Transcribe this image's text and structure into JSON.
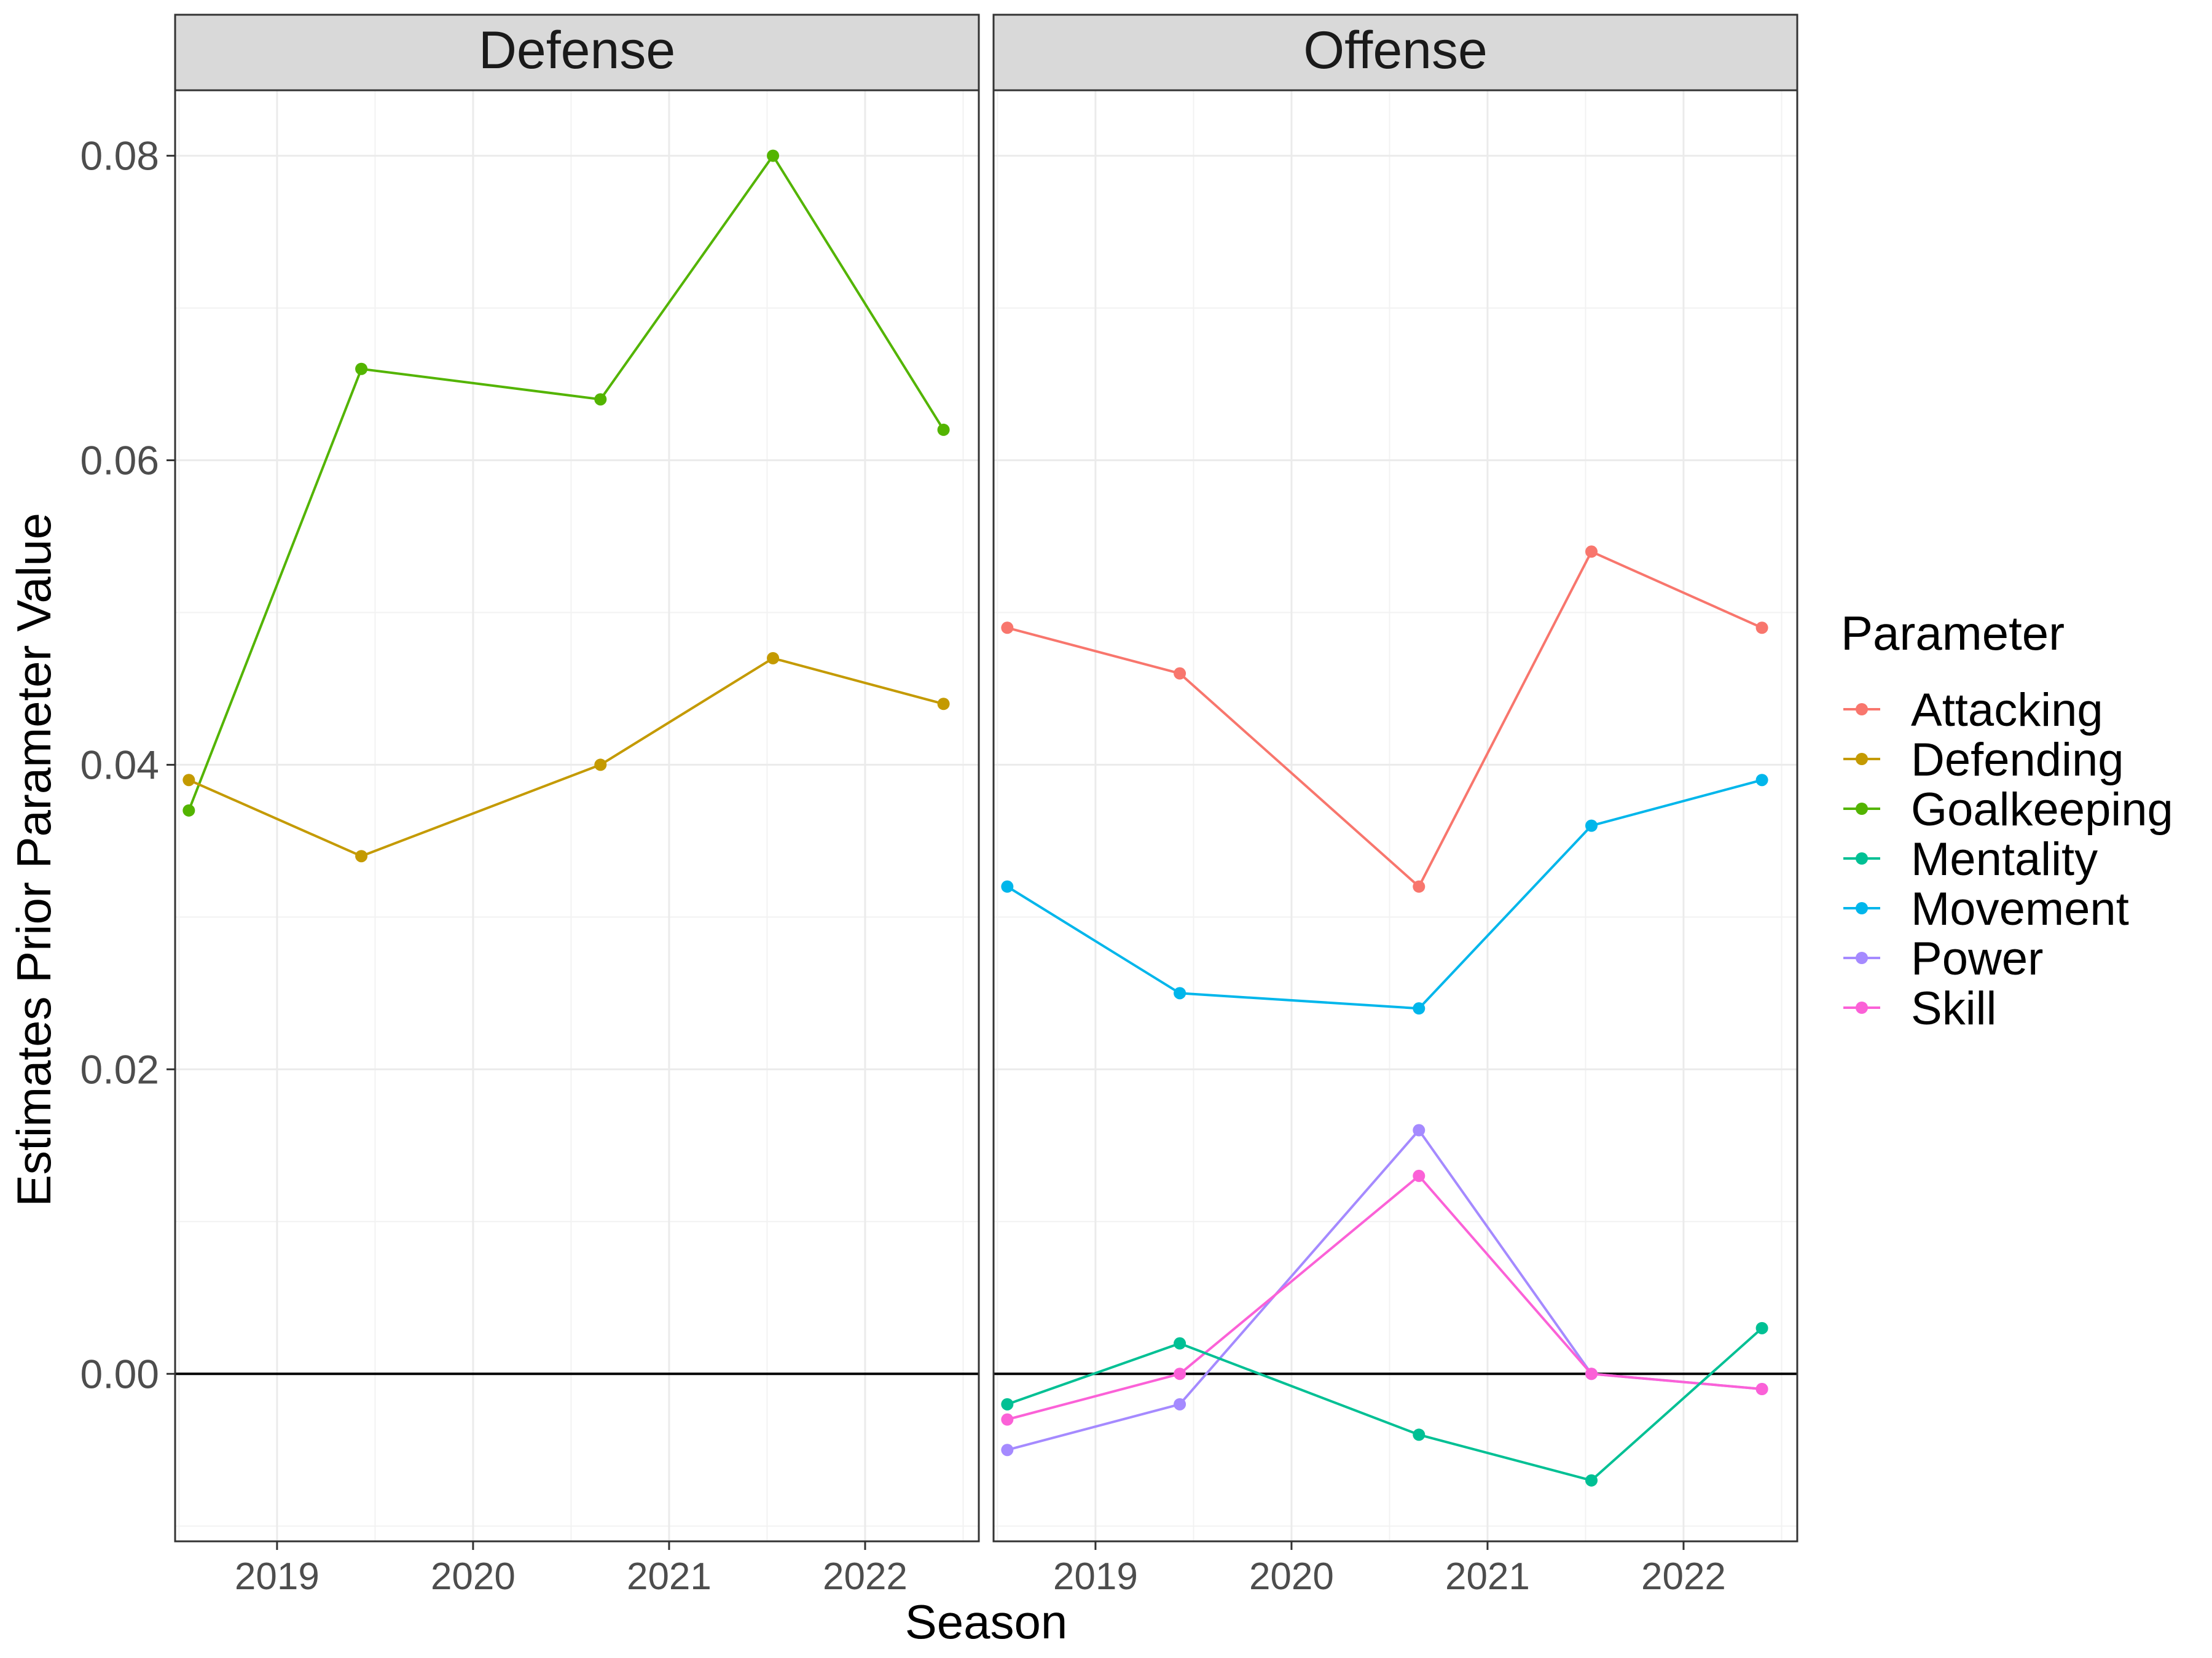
{
  "chart_data": {
    "type": "line",
    "xlabel": "Season",
    "ylabel": "Estimates Prior Parameter Value",
    "ylim": [
      -0.011,
      0.0843
    ],
    "xlim": [
      2018.48,
      2022.58
    ],
    "y_ticks": [
      "0.00",
      "0.02",
      "0.04",
      "0.06",
      "0.08"
    ],
    "y_tick_values": [
      0.0,
      0.02,
      0.04,
      0.06,
      0.08
    ],
    "x_ticks": [
      "2019",
      "2020",
      "2021",
      "2022"
    ],
    "x_tick_values": [
      2019,
      2020,
      2021,
      2022
    ],
    "x": [
      2018.55,
      2019.43,
      2020.65,
      2021.53,
      2022.4
    ],
    "hline": 0,
    "grid": true,
    "legend": {
      "title": "Parameter",
      "position": "right",
      "entries": [
        {
          "name": "Attacking",
          "color": "#F8766D"
        },
        {
          "name": "Defending",
          "color": "#C49A00"
        },
        {
          "name": "Goalkeeping",
          "color": "#53B400"
        },
        {
          "name": "Mentality",
          "color": "#00C094"
        },
        {
          "name": "Movement",
          "color": "#00B6EB"
        },
        {
          "name": "Power",
          "color": "#A58AFF"
        },
        {
          "name": "Skill",
          "color": "#FB61D7"
        }
      ]
    },
    "panels": [
      {
        "title": "Defense",
        "series": [
          {
            "name": "Goalkeeping",
            "color": "#53B400",
            "values": [
              0.037,
              0.066,
              0.064,
              0.08,
              0.062
            ]
          },
          {
            "name": "Defending",
            "color": "#C49A00",
            "values": [
              0.039,
              0.034,
              0.04,
              0.047,
              0.044
            ]
          }
        ]
      },
      {
        "title": "Offense",
        "series": [
          {
            "name": "Attacking",
            "color": "#F8766D",
            "values": [
              0.049,
              0.046,
              0.032,
              0.054,
              0.049
            ]
          },
          {
            "name": "Movement",
            "color": "#00B6EB",
            "values": [
              0.032,
              0.025,
              0.024,
              0.036,
              0.039
            ]
          },
          {
            "name": "Power",
            "color": "#A58AFF",
            "values": [
              -0.005,
              -0.002,
              0.016,
              0.0,
              -0.001
            ]
          },
          {
            "name": "Skill",
            "color": "#FB61D7",
            "values": [
              -0.003,
              0.0,
              0.013,
              0.0,
              -0.001
            ]
          },
          {
            "name": "Mentality",
            "color": "#00C094",
            "values": [
              -0.002,
              0.002,
              -0.004,
              -0.007,
              0.003
            ]
          }
        ]
      }
    ]
  }
}
